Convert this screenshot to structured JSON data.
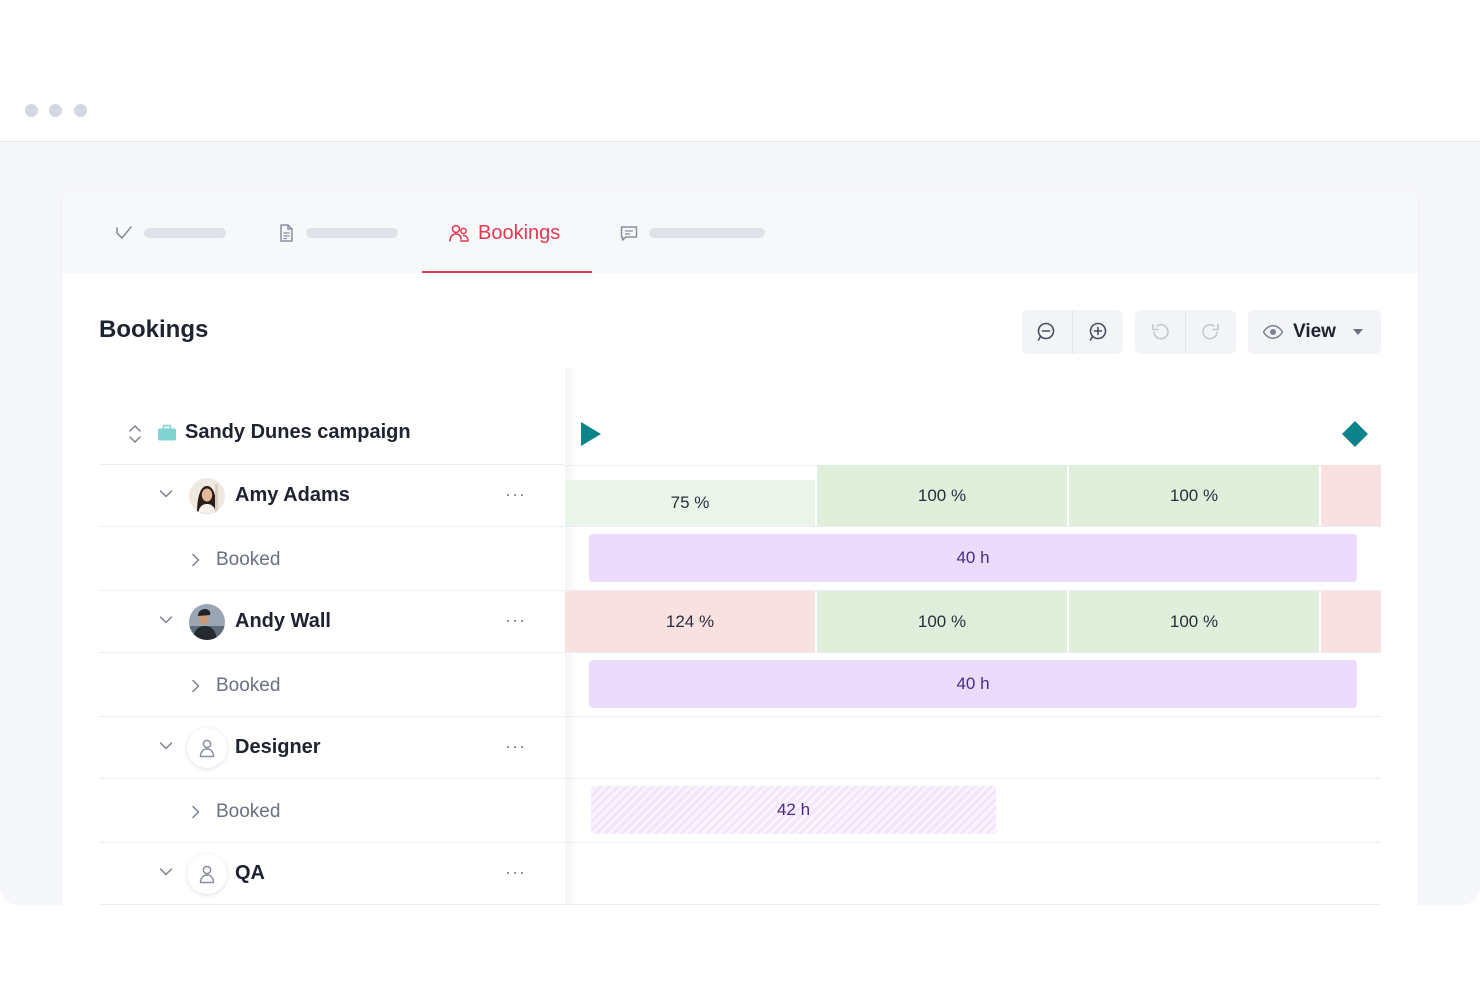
{
  "tabs": [
    {
      "id": "tasks",
      "icon": "checkmark-icon"
    },
    {
      "id": "documents",
      "icon": "document-icon"
    },
    {
      "id": "bookings",
      "icon": "users-icon",
      "label": "Bookings",
      "active": true
    },
    {
      "id": "comments",
      "icon": "chat-icon"
    }
  ],
  "page": {
    "title": "Bookings"
  },
  "toolbar": {
    "zoom_out_icon": "zoom-out-icon",
    "zoom_in_icon": "zoom-in-icon",
    "undo_icon": "undo-icon",
    "redo_icon": "redo-icon",
    "view_label": "View"
  },
  "project": {
    "name": "Sandy Dunes campaign",
    "color": "#7fd3d0",
    "milestone_color": "#0d8489"
  },
  "resources": [
    {
      "name": "Amy Adams",
      "kind": "person",
      "more": "···",
      "sub_label": "Booked",
      "utilization": [
        "75 %",
        "100 %",
        "100 %"
      ],
      "booked": "40 h"
    },
    {
      "name": "Andy Wall",
      "kind": "person",
      "more": "···",
      "sub_label": "Booked",
      "utilization": [
        "124 %",
        "100 %",
        "100 %"
      ],
      "booked": "40 h"
    },
    {
      "name": "Designer",
      "kind": "placeholder",
      "more": "···",
      "sub_label": "Booked",
      "booked": "42 h"
    },
    {
      "name": "QA",
      "kind": "placeholder",
      "more": "···"
    }
  ],
  "colors": {
    "accent": "#df3a52",
    "over_allocated": "#f9e1e1",
    "allocated": "#e0efdc",
    "under_allocated": "#eaf4e8",
    "booking_bar": "#ecdcfb"
  }
}
